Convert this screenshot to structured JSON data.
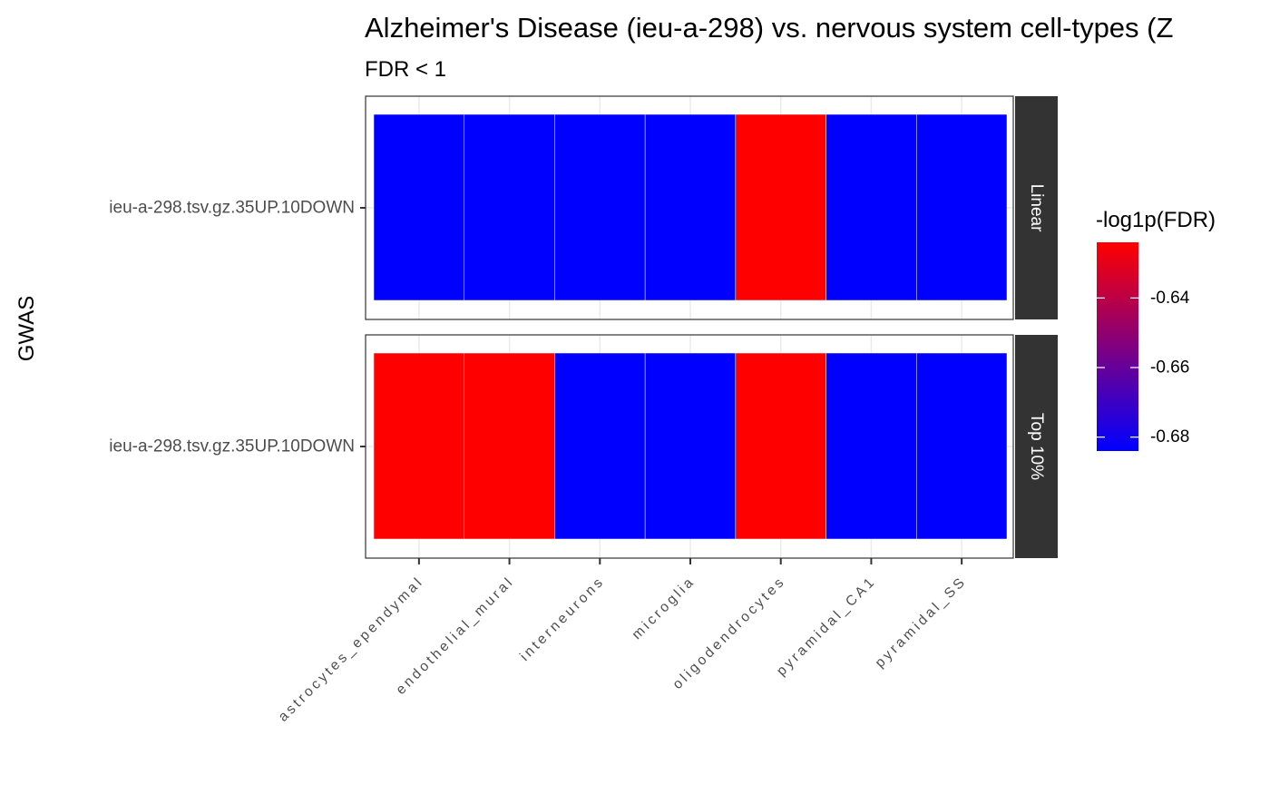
{
  "chart_data": {
    "type": "heatmap",
    "title": "Alzheimer's Disease (ieu-a-298) vs. nervous system cell-types (Z",
    "subtitle": "FDR < 1",
    "ylabel": "GWAS",
    "xlabel": "",
    "x_categories": [
      "astrocytes_ependymal",
      "endothelial_mural",
      "interneurons",
      "microglia",
      "oligodendrocytes",
      "pyramidal_CA1",
      "pyramidal_SS"
    ],
    "facets": [
      {
        "name": "Linear",
        "y_label": "ieu-a-298.tsv.gz.35UP.10DOWN",
        "values": [
          -0.684,
          -0.684,
          -0.684,
          -0.684,
          -0.624,
          -0.684,
          -0.684
        ]
      },
      {
        "name": "Top 10%",
        "y_label": "ieu-a-298.tsv.gz.35UP.10DOWN",
        "values": [
          -0.624,
          -0.624,
          -0.684,
          -0.684,
          -0.624,
          -0.684,
          -0.684
        ]
      }
    ],
    "legend": {
      "title": "-log1p(FDR)",
      "position": "right",
      "range": [
        -0.684,
        -0.624
      ],
      "ticks": [
        -0.64,
        -0.66,
        -0.68
      ],
      "tick_labels": [
        "-0.64",
        "-0.66",
        "-0.68"
      ],
      "low_color": "#0000FF",
      "high_color": "#FF0000"
    },
    "grid": true,
    "theme": "bw"
  }
}
